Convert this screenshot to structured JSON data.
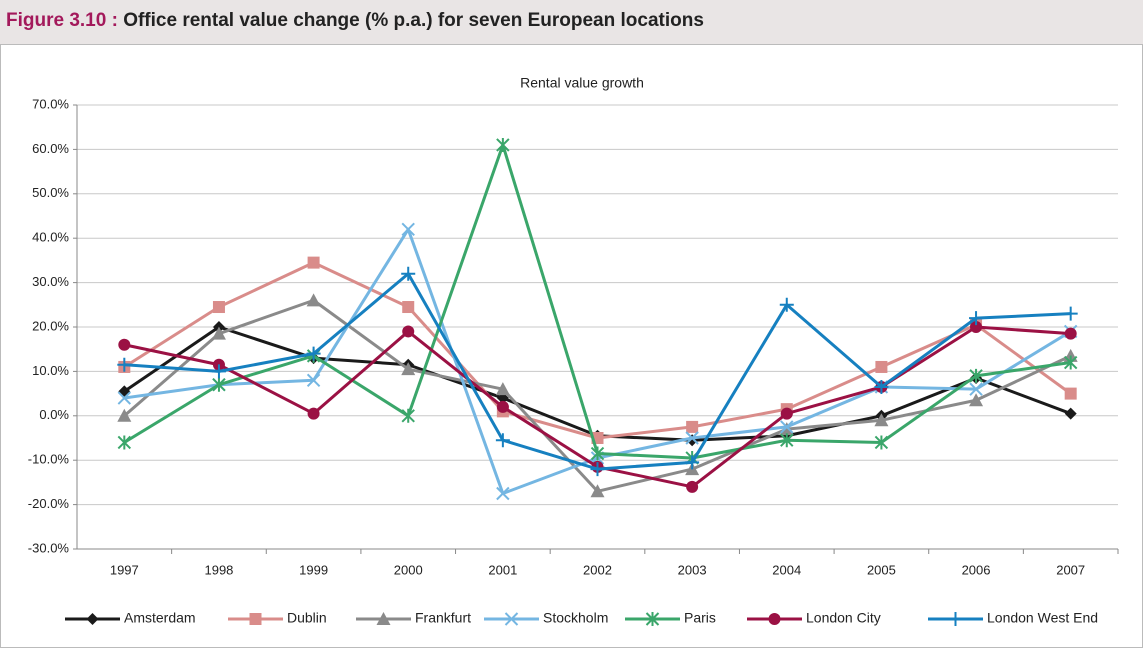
{
  "chart_data": {
    "type": "line",
    "figure_label": "Figure 3.10 :",
    "figure_title": "Office rental value change (% p.a.) for seven European locations",
    "title": "Rental value growth",
    "categories": [
      "1997",
      "1998",
      "1999",
      "2000",
      "2001",
      "2002",
      "2003",
      "2004",
      "2005",
      "2006",
      "2007"
    ],
    "ylim": [
      -30,
      70
    ],
    "yticks": [
      {
        "value": -30,
        "label": "-30.0%"
      },
      {
        "value": -20,
        "label": "-20.0%"
      },
      {
        "value": -10,
        "label": "-10.0%"
      },
      {
        "value": 0,
        "label": "0.0%"
      },
      {
        "value": 10,
        "label": "10.0%"
      },
      {
        "value": 20,
        "label": "20.0%"
      },
      {
        "value": 30,
        "label": "30.0%"
      },
      {
        "value": 40,
        "label": "40.0%"
      },
      {
        "value": 50,
        "label": "50.0%"
      },
      {
        "value": 60,
        "label": "60.0%"
      },
      {
        "value": 70,
        "label": "70.0%"
      }
    ],
    "grid": true,
    "legend": "bottom",
    "series": [
      {
        "name": "Amsterdam",
        "color": "#1a1a1a",
        "marker": "diamond",
        "values": [
          5.5,
          20,
          13,
          11.5,
          4,
          -4.5,
          -5.5,
          -4.5,
          0,
          8.5,
          0.5
        ]
      },
      {
        "name": "Dublin",
        "color": "#d98c8a",
        "marker": "square",
        "values": [
          11,
          24.5,
          34.5,
          24.5,
          1,
          -5,
          -2.5,
          1.5,
          11,
          20.5,
          5
        ]
      },
      {
        "name": "Frankfurt",
        "color": "#8a8a8a",
        "marker": "triangle",
        "values": [
          0,
          18.5,
          26,
          10.5,
          6,
          -17,
          -12,
          -3,
          -1,
          3.5,
          13.5
        ]
      },
      {
        "name": "Stockholm",
        "color": "#74b6e2",
        "marker": "x",
        "values": [
          4,
          7,
          8,
          42,
          -17.5,
          -9.5,
          -5,
          -2.5,
          6.5,
          6,
          19
        ]
      },
      {
        "name": "Paris",
        "color": "#3aa66a",
        "marker": "star",
        "values": [
          -6,
          7,
          13.5,
          0,
          61,
          -8.5,
          -9.5,
          -5.5,
          -6,
          9,
          12
        ]
      },
      {
        "name": "London City",
        "color": "#9b1144",
        "marker": "circle",
        "values": [
          16,
          11.5,
          0.5,
          19,
          2,
          -11.5,
          -16,
          0.5,
          6.5,
          20,
          18.5
        ]
      },
      {
        "name": "London West End",
        "color": "#1680c0",
        "marker": "plus",
        "values": [
          11.5,
          10,
          14,
          32,
          -5.5,
          -12,
          -10.5,
          25,
          6.5,
          22,
          23
        ]
      }
    ]
  }
}
